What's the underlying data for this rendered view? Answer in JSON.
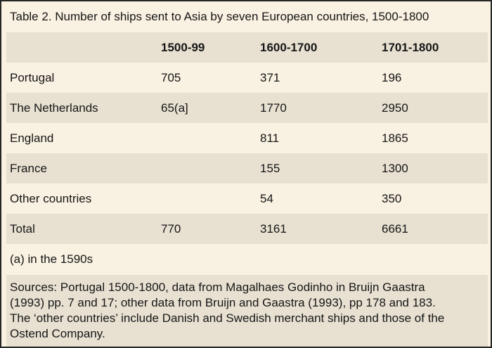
{
  "page": {
    "title": "Table 2. Number of ships sent to Asia by seven European countries, 1500-1800"
  },
  "table": {
    "header": {
      "col1": "",
      "col2": "1500-99",
      "col3": "1600-1700",
      "col4": "1701-1800"
    },
    "rows": [
      {
        "label": "Portugal",
        "v1": "705",
        "v2": "371",
        "v3": "196"
      },
      {
        "label": "The Netherlands",
        "v1": "65(a]",
        "v2": "1770",
        "v3": "2950"
      },
      {
        "label": "England",
        "v1": "",
        "v2": "811",
        "v3": "1865"
      },
      {
        "label": "France",
        "v1": "",
        "v2": "155",
        "v3": "1300"
      },
      {
        "label": "Other countries",
        "v1": "",
        "v2": "54",
        "v3": "350"
      },
      {
        "label": "Total",
        "v1": "770",
        "v2": "3161",
        "v3": "6661"
      }
    ]
  },
  "footnote": "(a) in the 1590s",
  "sources": {
    "lines": [
      "Sources: Portugal 1500-1800, data from Magalhaes Godinho in Bruijn Gaastra",
      "(1993) pp. 7 and 17; other data from Bruijn and Gaastra (1993), pp 178 and 183.",
      "The ‘other countries’ include Danish and Swedish merchant ships and those of the",
      "Ostend Company."
    ]
  },
  "colors": {
    "background": "#f9f1e1",
    "band": "#e8e1d2",
    "text": "#161616",
    "border": "#262626"
  }
}
